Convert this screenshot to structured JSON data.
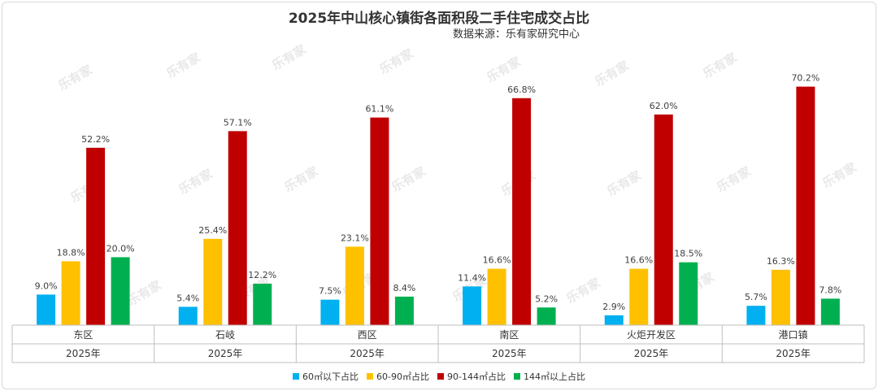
{
  "chart_data": {
    "type": "bar",
    "title": "2025年中山核心镇街各面积段二手住宅成交占比",
    "subtitle": "数据来源：乐有家研究中心",
    "watermark": "乐有家",
    "categories": [
      "东区",
      "石岐",
      "西区",
      "南区",
      "火炬开发区",
      "港口镇"
    ],
    "group_label": "2025年",
    "ylim": [
      0,
      80
    ],
    "series": [
      {
        "name": "60㎡以下占比",
        "color": "#00b0f0",
        "values": [
          9.0,
          5.4,
          7.5,
          11.4,
          2.9,
          5.7
        ],
        "labels": [
          "9.0%",
          "5.4%",
          "7.5%",
          "11.4%",
          "2.9%",
          "5.7%"
        ]
      },
      {
        "name": "60-90㎡占比",
        "color": "#ffc000",
        "values": [
          18.8,
          25.4,
          23.1,
          16.6,
          16.6,
          16.3
        ],
        "labels": [
          "18.8%",
          "25.4%",
          "23.1%",
          "16.6%",
          "16.6%",
          "16.3%"
        ]
      },
      {
        "name": "90-144㎡占比",
        "color": "#c00000",
        "values": [
          52.2,
          57.1,
          61.1,
          66.8,
          62.0,
          70.2
        ],
        "labels": [
          "52.2%",
          "57.1%",
          "61.1%",
          "66.8%",
          "62.0%",
          "70.2%"
        ]
      },
      {
        "name": "144㎡以上占比",
        "color": "#00b050",
        "values": [
          20.0,
          12.2,
          8.4,
          5.2,
          18.5,
          7.8
        ],
        "labels": [
          "20.0%",
          "12.2%",
          "8.4%",
          "5.2%",
          "18.5%",
          "7.8%"
        ]
      }
    ],
    "legend_position": "bottom",
    "grid": false
  }
}
